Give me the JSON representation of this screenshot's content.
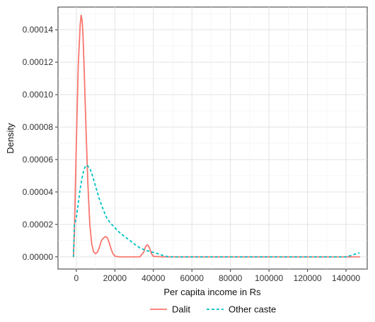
{
  "chart_data": {
    "type": "line",
    "title": "",
    "xlabel": "Per capita income in Rs",
    "ylabel": "Density",
    "xlim": [
      -9500,
      151000
    ],
    "ylim": [
      -7.5e-06,
      0.000154
    ],
    "x_ticks": [
      0,
      20000,
      40000,
      60000,
      80000,
      100000,
      120000,
      140000
    ],
    "x_tick_labels": [
      "0",
      "20000",
      "40000",
      "60000",
      "80000",
      "100000",
      "120000",
      "140000"
    ],
    "y_ticks": [
      0,
      2e-05,
      4e-05,
      6e-05,
      8e-05,
      0.0001,
      0.00012,
      0.00014
    ],
    "y_tick_labels": [
      "0.00000",
      "0.00002",
      "0.00004",
      "0.00006",
      "0.00008",
      "0.00010",
      "0.00012",
      "0.00014"
    ],
    "grid": true,
    "legend_position": "bottom",
    "series": [
      {
        "name": "Dalit",
        "color": "#F8766D",
        "dash": "solid",
        "x": [
          -1500,
          -1000,
          0,
          1000,
          2000,
          2500,
          3000,
          3500,
          4000,
          5000,
          6000,
          7000,
          8000,
          9000,
          10000,
          11000,
          12000,
          13000,
          14000,
          15000,
          16000,
          17000,
          18000,
          19000,
          20000,
          22000,
          25000,
          30000,
          33000,
          35000,
          36000,
          37000,
          38000,
          39000,
          40000,
          45000,
          60000,
          80000,
          100000,
          120000,
          140000,
          147000
        ],
        "y": [
          0,
          1.5e-05,
          7e-05,
          0.000118,
          0.000143,
          0.000149,
          0.000146,
          0.000136,
          0.000118,
          8e-05,
          4.5e-05,
          2e-05,
          8e-06,
          3e-06,
          2e-06,
          3e-06,
          6e-06,
          1e-05,
          1.15e-05,
          1.25e-05,
          1.2e-05,
          9e-06,
          5e-06,
          2e-06,
          5e-07,
          0,
          0,
          0,
          0,
          3e-06,
          6.5e-06,
          7.5e-06,
          5.5e-06,
          2e-06,
          3e-07,
          0,
          0,
          0,
          0,
          0,
          0,
          0
        ]
      },
      {
        "name": "Other caste",
        "color": "#00BFC4",
        "dash": "dashed",
        "x": [
          -1500,
          -1000,
          0,
          1000,
          2000,
          3000,
          4000,
          5000,
          6000,
          7000,
          8000,
          9000,
          10000,
          12000,
          14000,
          16000,
          18000,
          20000,
          22000,
          25000,
          28000,
          30000,
          33000,
          36000,
          40000,
          43000,
          45000,
          47000,
          50000,
          60000,
          80000,
          100000,
          120000,
          135000,
          140000,
          143000,
          145000,
          147000
        ],
        "y": [
          0,
          2e-05,
          2.4e-05,
          3.3e-05,
          4.2e-05,
          4.9e-05,
          5.4e-05,
          5.65e-05,
          5.6e-05,
          5.45e-05,
          5.15e-05,
          4.75e-05,
          4.35e-05,
          3.55e-05,
          2.9e-05,
          2.35e-05,
          2.05e-05,
          1.8e-05,
          1.55e-05,
          1.25e-05,
          1e-05,
          8e-06,
          5.5e-06,
          4e-06,
          2.8e-06,
          1.7e-06,
          8e-07,
          2e-07,
          0,
          0,
          0,
          0,
          0,
          0,
          0,
          1e-06,
          1.8e-06,
          2.5e-06
        ]
      }
    ]
  }
}
